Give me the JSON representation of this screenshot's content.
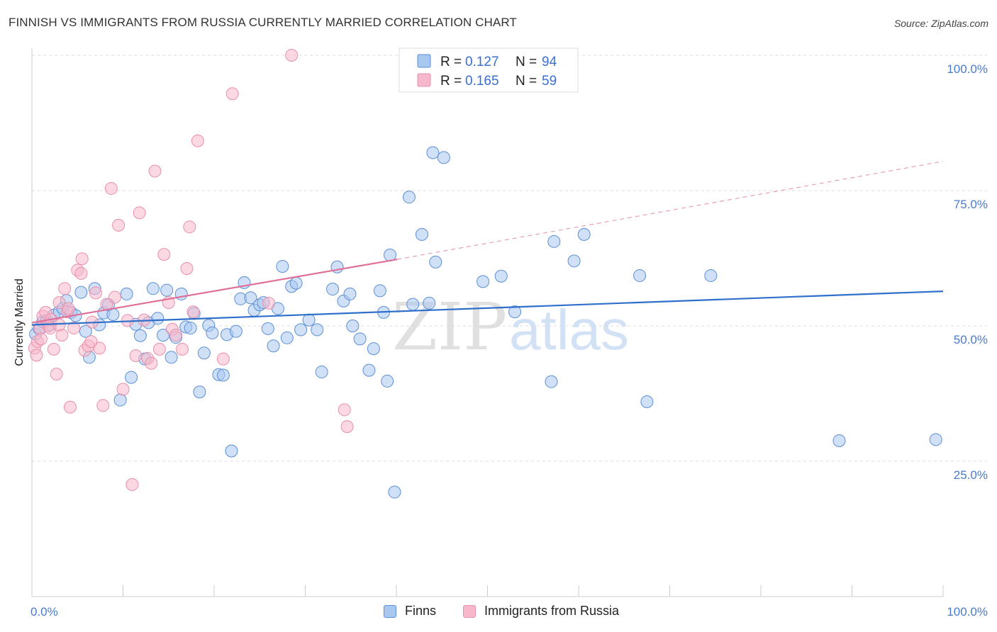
{
  "title": "FINNISH VS IMMIGRANTS FROM RUSSIA CURRENTLY MARRIED CORRELATION CHART",
  "source": "Source: ZipAtlas.com",
  "watermark": {
    "part1": "ZIP",
    "part2": "atlas"
  },
  "legend_top": {
    "rows": [
      {
        "r_label": "R =",
        "r_value": "0.127",
        "n_label": "N =",
        "n_value": "94"
      },
      {
        "r_label": "R =",
        "r_value": "0.165",
        "n_label": "N =",
        "n_value": "59"
      }
    ]
  },
  "legend_bottom": [
    {
      "label": "Finns"
    },
    {
      "label": "Immigrants from Russia"
    }
  ],
  "colors": {
    "finns_fill": "#a9c8f0",
    "finns_stroke": "#5b8fd6",
    "finns_line": "#2f6fcc",
    "russia_fill": "#f7b8cb",
    "russia_stroke": "#e890ac",
    "russia_line": "#e0709a",
    "tick_label": "#4a7cc7",
    "grid": "#dddddd",
    "value_text": "#3a6fcf"
  },
  "chart_data": {
    "type": "scatter",
    "title": "FINNISH VS IMMIGRANTS FROM RUSSIA CURRENTLY MARRIED CORRELATION CHART",
    "xlabel": "",
    "ylabel": "Currently Married",
    "xlim": [
      0,
      100
    ],
    "ylim": [
      0,
      100
    ],
    "x_tick_labels": [
      {
        "value": 0,
        "label": "0.0%"
      },
      {
        "value": 100,
        "label": "100.0%"
      }
    ],
    "y_tick_labels": [
      {
        "value": 100,
        "label": "100.0%"
      },
      {
        "value": 75,
        "label": "75.0%"
      },
      {
        "value": 50,
        "label": "50.0%"
      },
      {
        "value": 25,
        "label": "25.0%"
      }
    ],
    "grid": true,
    "legend_position": "top-center",
    "series": [
      {
        "name": "Finns",
        "trend": {
          "x": [
            0,
            100
          ],
          "y": [
            50.2,
            56.4
          ]
        },
        "points": [
          [
            0.4,
            48.5
          ],
          [
            0.8,
            49.5
          ],
          [
            1.2,
            50.8
          ],
          [
            1.6,
            51.0
          ],
          [
            2.0,
            50.2
          ],
          [
            2.4,
            52.0
          ],
          [
            3.0,
            52.6
          ],
          [
            3.4,
            53.2
          ],
          [
            3.8,
            54.7
          ],
          [
            4.3,
            52.5
          ],
          [
            4.8,
            51.9
          ],
          [
            5.4,
            56.2
          ],
          [
            5.9,
            49.0
          ],
          [
            6.3,
            44.2
          ],
          [
            6.9,
            56.9
          ],
          [
            7.4,
            50.2
          ],
          [
            7.9,
            52.4
          ],
          [
            8.4,
            53.9
          ],
          [
            8.9,
            52.1
          ],
          [
            9.7,
            36.3
          ],
          [
            10.4,
            55.9
          ],
          [
            10.9,
            40.5
          ],
          [
            11.4,
            50.3
          ],
          [
            11.9,
            48.2
          ],
          [
            12.4,
            43.9
          ],
          [
            12.8,
            50.6
          ],
          [
            13.3,
            56.9
          ],
          [
            13.8,
            51.4
          ],
          [
            14.4,
            48.3
          ],
          [
            14.8,
            56.6
          ],
          [
            15.3,
            44.2
          ],
          [
            15.8,
            47.9
          ],
          [
            16.4,
            55.9
          ],
          [
            16.9,
            49.8
          ],
          [
            17.4,
            49.6
          ],
          [
            17.8,
            52.3
          ],
          [
            18.4,
            37.8
          ],
          [
            18.9,
            45.0
          ],
          [
            19.4,
            50.1
          ],
          [
            19.8,
            48.7
          ],
          [
            20.5,
            41.0
          ],
          [
            21.0,
            40.9
          ],
          [
            21.4,
            48.4
          ],
          [
            21.9,
            26.9
          ],
          [
            22.4,
            49.0
          ],
          [
            22.9,
            55.0
          ],
          [
            23.3,
            58.0
          ],
          [
            24.0,
            55.2
          ],
          [
            24.4,
            52.9
          ],
          [
            25.0,
            53.9
          ],
          [
            25.4,
            54.3
          ],
          [
            25.9,
            49.5
          ],
          [
            26.5,
            46.3
          ],
          [
            27.0,
            53.2
          ],
          [
            27.5,
            61.0
          ],
          [
            28.0,
            47.8
          ],
          [
            28.5,
            57.3
          ],
          [
            29.0,
            57.9
          ],
          [
            29.5,
            49.3
          ],
          [
            30.4,
            51.1
          ],
          [
            31.3,
            49.3
          ],
          [
            31.8,
            41.5
          ],
          [
            33.0,
            56.8
          ],
          [
            33.5,
            60.9
          ],
          [
            34.2,
            54.6
          ],
          [
            34.9,
            55.9
          ],
          [
            35.2,
            50.0
          ],
          [
            36.0,
            47.6
          ],
          [
            37.0,
            41.8
          ],
          [
            37.5,
            45.8
          ],
          [
            38.2,
            56.5
          ],
          [
            38.6,
            52.5
          ],
          [
            39.0,
            39.8
          ],
          [
            39.3,
            63.1
          ],
          [
            39.8,
            19.3
          ],
          [
            41.4,
            73.8
          ],
          [
            41.8,
            54.0
          ],
          [
            42.8,
            66.9
          ],
          [
            43.6,
            54.2
          ],
          [
            44.0,
            82.0
          ],
          [
            44.3,
            61.8
          ],
          [
            45.2,
            81.1
          ],
          [
            49.5,
            58.2
          ],
          [
            51.5,
            59.2
          ],
          [
            53.0,
            52.6
          ],
          [
            57.0,
            39.7
          ],
          [
            57.3,
            65.6
          ],
          [
            59.5,
            62.0
          ],
          [
            60.6,
            66.9
          ],
          [
            66.7,
            59.3
          ],
          [
            67.5,
            36.0
          ],
          [
            74.5,
            59.3
          ],
          [
            88.6,
            28.8
          ],
          [
            99.2,
            29.0
          ]
        ]
      },
      {
        "name": "Immigrants from Russia",
        "trend": {
          "x": [
            0,
            40.1
          ],
          "y": [
            50.6,
            62.3
          ],
          "dashed_extension": {
            "x": [
              40.1,
              100
            ],
            "y": [
              62.3,
              80.4
            ]
          }
        },
        "points": [
          [
            0.3,
            45.9
          ],
          [
            0.6,
            47.1
          ],
          [
            0.9,
            49.5
          ],
          [
            1.2,
            51.8
          ],
          [
            1.5,
            52.5
          ],
          [
            1.8,
            50.0
          ],
          [
            2.1,
            51.2
          ],
          [
            2.4,
            45.7
          ],
          [
            2.7,
            41.1
          ],
          [
            3.0,
            54.3
          ],
          [
            3.3,
            48.3
          ],
          [
            3.6,
            56.9
          ],
          [
            3.9,
            52.6
          ],
          [
            4.2,
            35.0
          ],
          [
            4.6,
            49.6
          ],
          [
            5.0,
            60.3
          ],
          [
            5.4,
            59.7
          ],
          [
            5.8,
            45.5
          ],
          [
            6.2,
            46.3
          ],
          [
            6.6,
            50.7
          ],
          [
            7.0,
            56.1
          ],
          [
            7.4,
            45.9
          ],
          [
            7.8,
            35.3
          ],
          [
            8.2,
            54.0
          ],
          [
            8.7,
            75.4
          ],
          [
            9.1,
            55.3
          ],
          [
            9.5,
            68.6
          ],
          [
            10.0,
            38.3
          ],
          [
            10.5,
            51.0
          ],
          [
            11.0,
            20.7
          ],
          [
            11.4,
            44.5
          ],
          [
            11.8,
            70.9
          ],
          [
            12.3,
            51.1
          ],
          [
            12.7,
            44.0
          ],
          [
            13.1,
            43.1
          ],
          [
            13.5,
            78.6
          ],
          [
            14.0,
            45.7
          ],
          [
            14.5,
            63.2
          ],
          [
            15.0,
            54.3
          ],
          [
            15.4,
            49.4
          ],
          [
            15.8,
            48.3
          ],
          [
            16.5,
            45.7
          ],
          [
            17.0,
            60.6
          ],
          [
            17.3,
            68.3
          ],
          [
            17.7,
            52.6
          ],
          [
            18.2,
            84.2
          ],
          [
            21.0,
            43.9
          ],
          [
            22.0,
            92.9
          ],
          [
            26.0,
            54.2
          ],
          [
            28.5,
            100.0
          ],
          [
            34.3,
            34.5
          ],
          [
            34.6,
            31.4
          ],
          [
            0.5,
            44.6
          ],
          [
            1.0,
            47.6
          ],
          [
            2.0,
            49.6
          ],
          [
            3.0,
            50.2
          ],
          [
            4.0,
            53.2
          ],
          [
            5.5,
            62.4
          ],
          [
            6.5,
            47.1
          ]
        ]
      }
    ]
  }
}
